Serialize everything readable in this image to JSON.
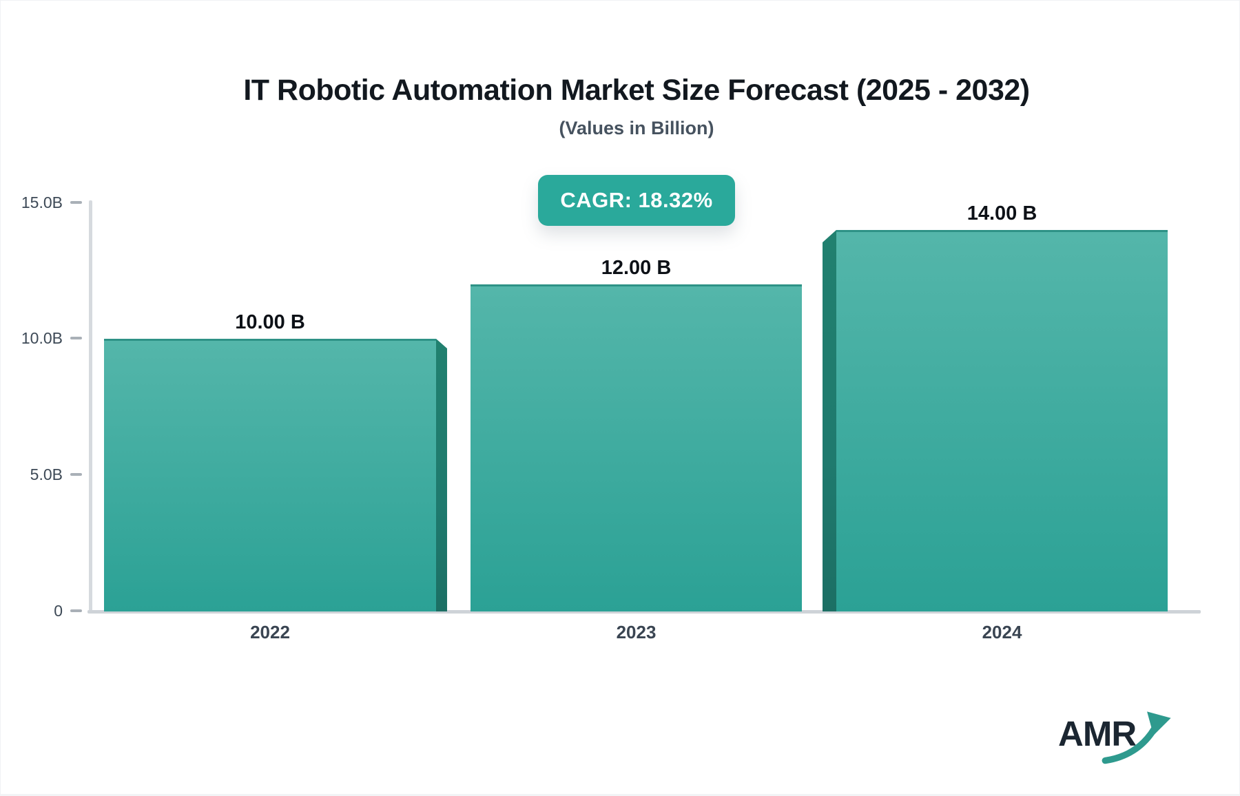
{
  "header": {
    "title": "IT Robotic Automation Market Size Forecast (2025 - 2032)",
    "subtitle": "(Values in Billion)"
  },
  "badge": {
    "label": "CAGR: 18.32%",
    "bg_color": "#2aa99b",
    "text_color": "#ffffff"
  },
  "logo": {
    "text": "AMR",
    "arrow_icon": "trend-up-arrow",
    "text_color": "#1b2631",
    "arrow_color": "#2e9a8e"
  },
  "chart_data": {
    "type": "bar",
    "title": "IT Robotic Automation Market Size Forecast (2025 - 2032)",
    "subtitle": "(Values in Billion)",
    "annotation": "CAGR: 18.32%",
    "categories": [
      "2022",
      "2023",
      "2024"
    ],
    "values": [
      10,
      12,
      14
    ],
    "value_labels": [
      "10.00 B",
      "12.00 B",
      "14.00 B"
    ],
    "unit": "Billion",
    "ylim": [
      0,
      15
    ],
    "yticks": [
      {
        "value": 15,
        "label": "15.0B"
      },
      {
        "value": 10,
        "label": "10.0B"
      },
      {
        "value": 5,
        "label": "5.0B"
      },
      {
        "value": 0,
        "label": "0"
      }
    ],
    "grid": false,
    "legend": false,
    "bar_style": "pseudo-3d",
    "colors": {
      "bar_gradient_top": "#54b6aa",
      "bar_gradient_bottom": "#2ba195",
      "bar_top_edge": "#2e9286",
      "bar_side_face": "#1f7a6e",
      "axis_line": "#d6dade",
      "tick_dash": "#a9b0b7",
      "tick_label": "#3d4956",
      "x_label": "#3a4552",
      "value_label": "#0d1117",
      "badge": "#2aa99b"
    }
  }
}
